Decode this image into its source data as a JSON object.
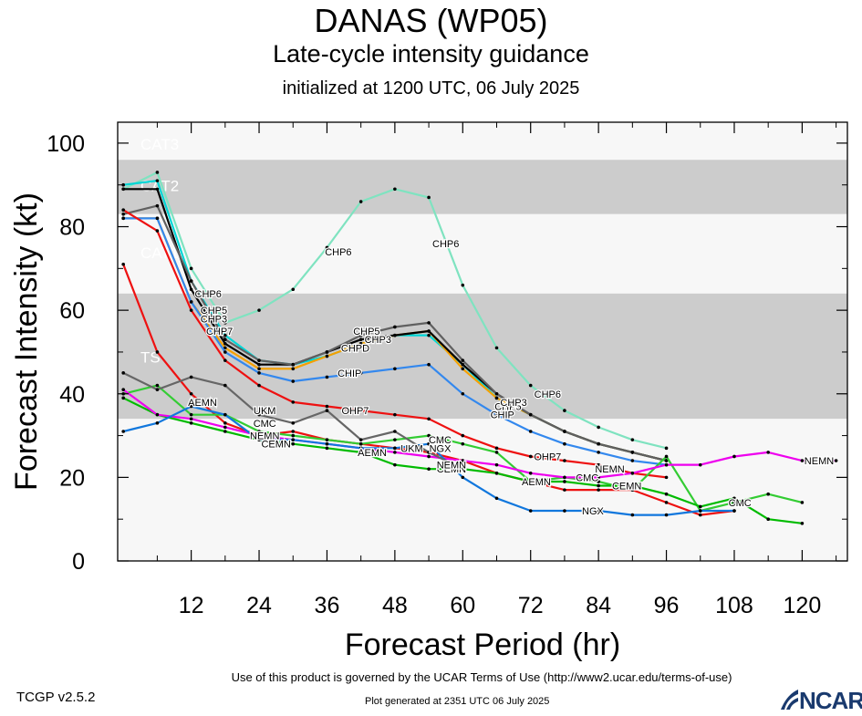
{
  "header": {
    "title": "DANAS (WP05)",
    "subtitle": "Late-cycle intensity guidance",
    "init": "initialized at 1200 UTC, 06 July 2025"
  },
  "footer": {
    "terms": "Use of this product is governed by the UCAR Terms of Use (http://www2.ucar.edu/terms-of-use)",
    "version": "TCGP v2.5.2",
    "generated": "Plot generated at 2351 UTC   06 July 2025",
    "logo": "NCAR"
  },
  "chart_data": {
    "type": "line",
    "xlabel": "Forecast Period (hr)",
    "ylabel": "Forecast Intensity (kt)",
    "xlim": [
      -1,
      128
    ],
    "ylim": [
      0,
      105
    ],
    "xticks": [
      12,
      24,
      36,
      48,
      60,
      72,
      84,
      96,
      108,
      120
    ],
    "yticks": [
      0,
      20,
      40,
      60,
      80,
      100
    ],
    "grid": false,
    "bands": [
      {
        "label": "CAT3",
        "from": 96,
        "to": 105,
        "fill": "#f7f7f7"
      },
      {
        "label": "CAT2",
        "from": 83,
        "to": 96,
        "fill": "#cccccc"
      },
      {
        "label": "CAT1",
        "from": 64,
        "to": 83,
        "fill": "#f7f7f7"
      },
      {
        "label": "TS",
        "from": 34,
        "to": 64,
        "fill": "#cccccc"
      },
      {
        "label": "",
        "from": 0,
        "to": 34,
        "fill": "#f7f7f7"
      }
    ],
    "band_labels": [
      {
        "text": "CAT3",
        "value": 100
      },
      {
        "text": "CAT2",
        "value": 90
      },
      {
        "text": "CAT1",
        "value": 74
      },
      {
        "text": "TS",
        "value": 49
      }
    ],
    "series": [
      {
        "name": "CHP6",
        "color": "#7fe3c0",
        "x": [
          0,
          6,
          12,
          18,
          24,
          30,
          36,
          42,
          48,
          54,
          60,
          66,
          72,
          78,
          84,
          90,
          96
        ],
        "y": [
          89,
          93,
          70,
          57,
          60,
          65,
          75,
          86,
          89,
          87,
          66,
          51,
          42,
          36,
          32,
          29,
          27
        ],
        "labels": [
          {
            "x": 15,
            "y": 64
          },
          {
            "x": 38,
            "y": 74
          },
          {
            "x": 57,
            "y": 76
          },
          {
            "x": 75,
            "y": 40
          }
        ]
      },
      {
        "name": "CHP5",
        "color": "#00d6d6",
        "x": [
          0,
          6,
          12,
          18,
          24,
          30,
          36,
          42,
          48,
          54,
          60,
          66,
          72,
          78,
          84,
          90,
          96
        ],
        "y": [
          90,
          91,
          67,
          54,
          48,
          47,
          49,
          52,
          54,
          54,
          47,
          39,
          35,
          31,
          28,
          26,
          24
        ],
        "labels": [
          {
            "x": 16,
            "y": 60
          },
          {
            "x": 43,
            "y": 55
          },
          {
            "x": 68,
            "y": 37
          }
        ]
      },
      {
        "name": "CHPD",
        "color": "#f5a000",
        "x": [
          0,
          6,
          12,
          18,
          24,
          30,
          36,
          42,
          48,
          54,
          60,
          66,
          72,
          78,
          84,
          90,
          96
        ],
        "y": [
          82,
          82,
          62,
          51,
          46,
          46,
          49,
          52,
          54,
          55,
          46,
          39,
          35,
          31,
          28,
          26,
          24
        ],
        "labels": [
          {
            "x": 41,
            "y": 51
          }
        ]
      },
      {
        "name": "CHP3",
        "color": "#000000",
        "x": [
          0,
          6,
          12,
          18,
          24,
          30,
          36,
          42,
          48,
          54,
          60,
          66,
          72,
          78,
          84,
          90,
          96
        ],
        "y": [
          89,
          89,
          65,
          52,
          47,
          47,
          50,
          53,
          54,
          55,
          47,
          40,
          35,
          31,
          28,
          26,
          24
        ],
        "labels": [
          {
            "x": 16,
            "y": 58
          },
          {
            "x": 45,
            "y": 53
          },
          {
            "x": 69,
            "y": 38
          }
        ]
      },
      {
        "name": "CHP7",
        "color": "#606060",
        "x": [
          0,
          6,
          12,
          18,
          24,
          30,
          36,
          42,
          48,
          54,
          60,
          66,
          72,
          78,
          84,
          90,
          96
        ],
        "y": [
          83,
          85,
          67,
          53,
          48,
          47,
          50,
          54,
          56,
          57,
          48,
          40,
          35,
          31,
          28,
          26,
          24
        ],
        "labels": [
          {
            "x": 17,
            "y": 55
          }
        ]
      },
      {
        "name": "CHIP",
        "color": "#3388ee",
        "x": [
          0,
          6,
          12,
          18,
          24,
          30,
          36,
          42,
          48,
          54,
          60,
          66,
          72,
          78,
          84,
          90,
          96
        ],
        "y": [
          82,
          82,
          62,
          50,
          45,
          43,
          44,
          45,
          46,
          47,
          40,
          35,
          31,
          28,
          26,
          24,
          23
        ],
        "labels": [
          {
            "x": 40,
            "y": 45
          },
          {
            "x": 67,
            "y": 35
          }
        ]
      },
      {
        "name": "OHP7",
        "color": "#ee1111",
        "x": [
          0,
          6,
          12,
          18,
          24,
          30,
          36,
          42,
          48,
          54,
          60,
          66,
          72,
          78,
          84,
          90,
          96
        ],
        "y": [
          84,
          79,
          60,
          48,
          42,
          38,
          37,
          36,
          35,
          34,
          30,
          27,
          25,
          24,
          23,
          21,
          20
        ],
        "labels": [
          {
            "x": 41,
            "y": 36
          },
          {
            "x": 75,
            "y": 25
          }
        ]
      },
      {
        "name": "AEMN",
        "color": "#ee1111",
        "x": [
          0,
          6,
          12,
          18,
          24,
          30,
          36,
          42,
          48,
          54,
          60,
          66,
          72,
          78,
          84,
          90,
          96,
          102,
          108
        ],
        "y": [
          71,
          50,
          40,
          33,
          30,
          31,
          29,
          28,
          27,
          26,
          24,
          21,
          19,
          17,
          17,
          17,
          14,
          11,
          12
        ],
        "labels": [
          {
            "x": 14,
            "y": 38
          },
          {
            "x": 44,
            "y": 26
          },
          {
            "x": 73,
            "y": 19
          }
        ]
      },
      {
        "name": "CMC",
        "color": "#33cc33",
        "x": [
          0,
          6,
          12,
          18,
          24,
          30,
          36,
          42,
          48,
          54,
          60,
          66,
          72,
          78,
          84,
          90,
          96,
          102,
          108,
          114,
          120
        ],
        "y": [
          40,
          42,
          35,
          35,
          31,
          30,
          29,
          28,
          29,
          30,
          28,
          26,
          19,
          20,
          19,
          17,
          25,
          12,
          14,
          16,
          14
        ],
        "labels": [
          {
            "x": 25,
            "y": 33
          },
          {
            "x": 56,
            "y": 29
          },
          {
            "x": 82,
            "y": 20
          },
          {
            "x": 109,
            "y": 14
          }
        ]
      },
      {
        "name": "CEMN",
        "color": "#00bb00",
        "x": [
          0,
          6,
          12,
          18,
          24,
          30,
          36,
          42,
          48,
          54,
          60,
          66,
          72,
          78,
          84,
          90,
          96,
          102,
          108,
          114,
          120
        ],
        "y": [
          39,
          35,
          33,
          31,
          29,
          28,
          27,
          26,
          23,
          22,
          22,
          21,
          19,
          19,
          18,
          18,
          16,
          13,
          15,
          10,
          9
        ],
        "labels": [
          {
            "x": 27,
            "y": 28
          },
          {
            "x": 58,
            "y": 22
          },
          {
            "x": 89,
            "y": 18
          }
        ]
      },
      {
        "name": "NEMN",
        "color": "#ee00ee",
        "x": [
          0,
          6,
          12,
          18,
          24,
          30,
          36,
          42,
          48,
          54,
          60,
          66,
          72,
          78,
          84,
          90,
          96,
          102,
          108,
          114,
          120,
          126
        ],
        "y": [
          41,
          35,
          34,
          32,
          30,
          29,
          28,
          27,
          26,
          25,
          24,
          23,
          21,
          20,
          20,
          21,
          23,
          23,
          25,
          26,
          24,
          24
        ],
        "labels": [
          {
            "x": 25,
            "y": 30
          },
          {
            "x": 58,
            "y": 23
          },
          {
            "x": 86,
            "y": 22
          },
          {
            "x": 123,
            "y": 24
          }
        ]
      },
      {
        "name": "NGX",
        "color": "#1177dd",
        "x": [
          0,
          6,
          12,
          18,
          24,
          30,
          36,
          42,
          48,
          54,
          60,
          66,
          72,
          78,
          84,
          90,
          96,
          102,
          108
        ],
        "y": [
          31,
          33,
          37,
          35,
          29,
          29,
          28,
          27,
          27,
          28,
          20,
          15,
          12,
          12,
          12,
          11,
          11,
          12,
          12
        ],
        "labels": [
          {
            "x": 56,
            "y": 27
          },
          {
            "x": 83,
            "y": 12
          }
        ]
      },
      {
        "name": "UKM",
        "color": "#666666",
        "x": [
          0,
          6,
          12,
          18,
          24,
          30,
          36,
          42,
          48,
          54,
          60
        ],
        "y": [
          45,
          41,
          44,
          42,
          35,
          33,
          36,
          29,
          31,
          26,
          22
        ],
        "labels": [
          {
            "x": 25,
            "y": 36
          },
          {
            "x": 51,
            "y": 27
          }
        ]
      }
    ]
  }
}
